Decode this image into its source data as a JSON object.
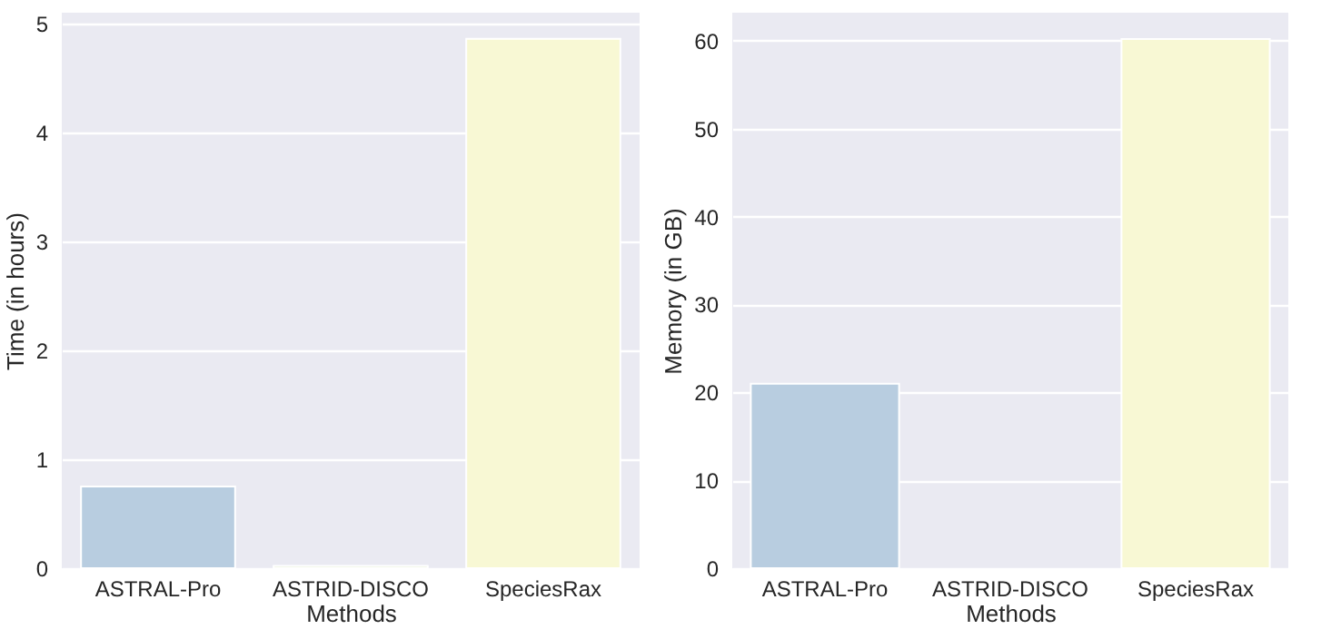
{
  "chart_data": [
    {
      "type": "bar",
      "xlabel": "Methods",
      "ylabel": "Time (in hours)",
      "categories": [
        "ASTRAL-Pro",
        "ASTRID-DISCO",
        "SpeciesRax"
      ],
      "values": [
        0.75,
        0.02,
        4.86
      ],
      "colors": [
        "#b8cde0",
        "#e2edd3",
        "#f8f8d4"
      ],
      "ylim": [
        0,
        5.1
      ],
      "yticks": [
        0,
        1,
        2,
        3,
        4,
        5
      ],
      "grid": "y"
    },
    {
      "type": "bar",
      "xlabel": "Methods",
      "ylabel": "Memory (in GB)",
      "categories": [
        "ASTRAL-Pro",
        "ASTRID-DISCO",
        "SpeciesRax"
      ],
      "values": [
        21.0,
        null,
        60.2
      ],
      "colors": [
        "#b8cde0",
        "#e2edd3",
        "#f8f8d4"
      ],
      "ylim": [
        0,
        63.2
      ],
      "yticks": [
        0,
        10,
        20,
        30,
        40,
        50,
        60
      ],
      "grid": "y"
    }
  ]
}
